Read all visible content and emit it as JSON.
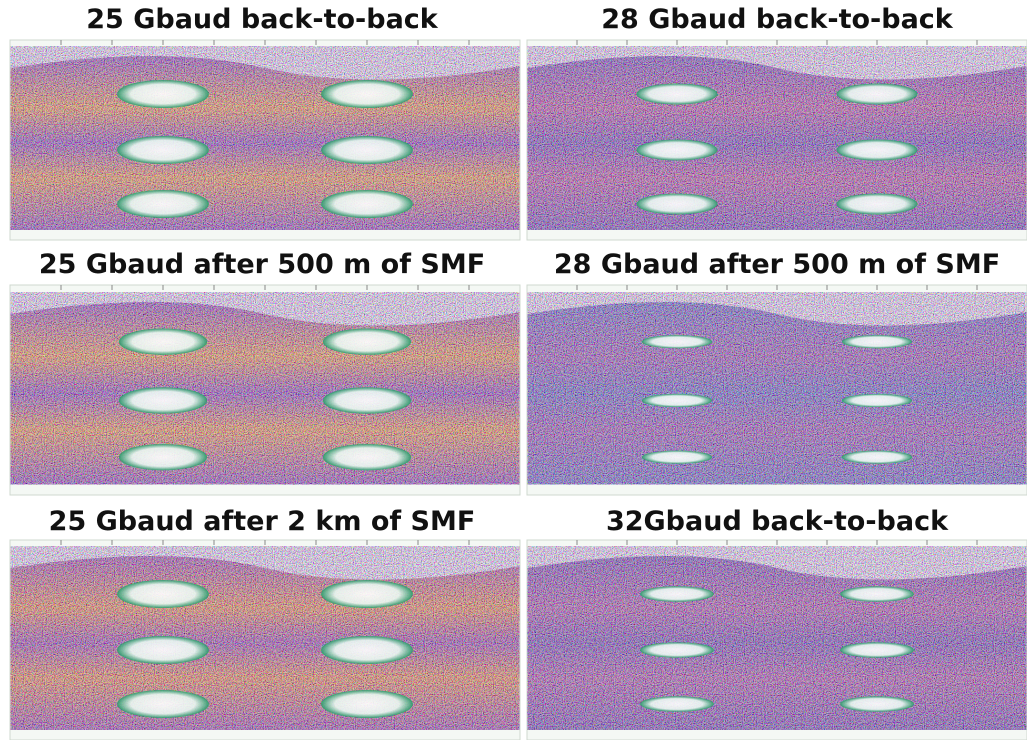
{
  "panels": [
    {
      "title": "25 Gbaud back-to-back"
    },
    {
      "title": "28 Gbaud back-to-back"
    },
    {
      "title": "25 Gbaud after 500 m of SMF"
    },
    {
      "title": "28 Gbaud after 500 m of SMF"
    },
    {
      "title": "25 Gbaud after 2 km of SMF"
    },
    {
      "title": "32Gbaud back-to-back"
    }
  ]
}
